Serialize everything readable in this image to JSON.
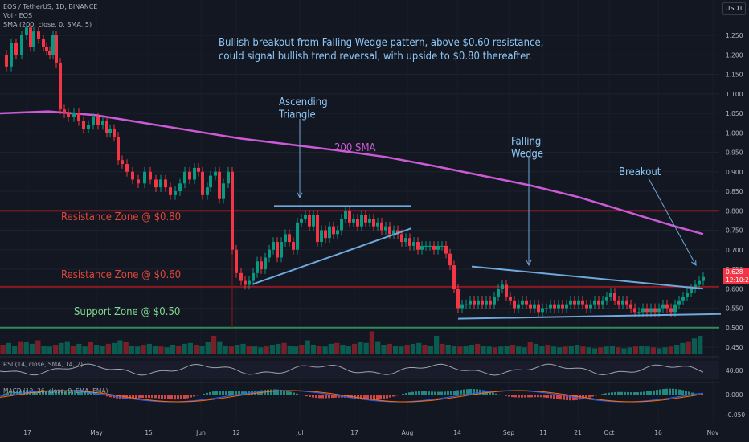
{
  "header": {
    "symbol_line": "EOS / TetherUS, 1D, BINANCE",
    "vol_line": "Vol · EOS",
    "sma_line": "SMA (200, close, 0, SMA, 5)",
    "currency": "USDT"
  },
  "current_price": {
    "price": "0.628",
    "countdown": "12:10:26"
  },
  "chart_data": {
    "type": "candlestick",
    "title": "Bullish breakout from Falling Wedge pattern, above $0.60 resistance, could signal bullish trend reversal, with upside to $0.80 thereafter.",
    "x_tick_labels": [
      "17",
      "May",
      "15",
      "Jun",
      "12",
      "Jul",
      "17",
      "Aug",
      "14",
      "Sep",
      "11",
      "21",
      "Oct",
      "16",
      "Nov"
    ],
    "y_ticks": [
      1.25,
      1.2,
      1.15,
      1.1,
      1.05,
      1.0,
      0.95,
      0.9,
      0.85,
      0.8,
      0.75,
      0.7,
      0.65,
      0.6,
      0.55,
      0.5,
      0.45
    ],
    "ylim": [
      0.43,
      1.27
    ],
    "price_path": [
      [
        0,
        1.2
      ],
      [
        8,
        1.17
      ],
      [
        14,
        1.23
      ],
      [
        20,
        1.2
      ],
      [
        27,
        1.25
      ],
      [
        33,
        1.27
      ],
      [
        38,
        1.22
      ],
      [
        42,
        1.26
      ],
      [
        48,
        1.24
      ],
      [
        54,
        1.22
      ],
      [
        58,
        1.21
      ],
      [
        62,
        1.2
      ],
      [
        66,
        1.25
      ],
      [
        70,
        1.18
      ],
      [
        75,
        1.06
      ],
      [
        80,
        1.05
      ],
      [
        85,
        1.04
      ],
      [
        92,
        1.05
      ],
      [
        98,
        1.03
      ],
      [
        104,
        1.01
      ],
      [
        110,
        1.02
      ],
      [
        116,
        1.04
      ],
      [
        122,
        1.02
      ],
      [
        128,
        1.03
      ],
      [
        133,
        1.0
      ],
      [
        137,
        1.01
      ],
      [
        142,
        0.99
      ],
      [
        147,
        0.93
      ],
      [
        152,
        0.92
      ],
      [
        158,
        0.9
      ],
      [
        165,
        0.88
      ],
      [
        172,
        0.87
      ],
      [
        180,
        0.9
      ],
      [
        187,
        0.88
      ],
      [
        194,
        0.86
      ],
      [
        200,
        0.88
      ],
      [
        206,
        0.86
      ],
      [
        212,
        0.84
      ],
      [
        218,
        0.85
      ],
      [
        224,
        0.87
      ],
      [
        230,
        0.9
      ],
      [
        236,
        0.88
      ],
      [
        242,
        0.91
      ],
      [
        247,
        0.9
      ],
      [
        252,
        0.84
      ],
      [
        258,
        0.86
      ],
      [
        262,
        0.89
      ],
      [
        268,
        0.9
      ],
      [
        273,
        0.83
      ],
      [
        278,
        0.87
      ],
      [
        284,
        0.9
      ],
      [
        289,
        0.7
      ],
      [
        294,
        0.64
      ],
      [
        300,
        0.62
      ],
      [
        305,
        0.61
      ],
      [
        310,
        0.62
      ],
      [
        315,
        0.64
      ],
      [
        320,
        0.67
      ],
      [
        325,
        0.65
      ],
      [
        330,
        0.68
      ],
      [
        335,
        0.7
      ],
      [
        340,
        0.72
      ],
      [
        345,
        0.68
      ],
      [
        350,
        0.72
      ],
      [
        355,
        0.74
      ],
      [
        360,
        0.72
      ],
      [
        365,
        0.7
      ],
      [
        370,
        0.77
      ],
      [
        375,
        0.78
      ],
      [
        380,
        0.79
      ],
      [
        385,
        0.76
      ],
      [
        390,
        0.79
      ],
      [
        395,
        0.72
      ],
      [
        400,
        0.75
      ],
      [
        405,
        0.73
      ],
      [
        410,
        0.76
      ],
      [
        415,
        0.74
      ],
      [
        420,
        0.75
      ],
      [
        425,
        0.78
      ],
      [
        430,
        0.8
      ],
      [
        435,
        0.77
      ],
      [
        440,
        0.78
      ],
      [
        445,
        0.76
      ],
      [
        450,
        0.79
      ],
      [
        455,
        0.77
      ],
      [
        460,
        0.78
      ],
      [
        465,
        0.76
      ],
      [
        470,
        0.77
      ],
      [
        475,
        0.75
      ],
      [
        480,
        0.76
      ],
      [
        485,
        0.74
      ],
      [
        490,
        0.75
      ],
      [
        495,
        0.74
      ],
      [
        500,
        0.72
      ],
      [
        505,
        0.73
      ],
      [
        510,
        0.71
      ],
      [
        515,
        0.72
      ],
      [
        520,
        0.7
      ],
      [
        525,
        0.71
      ],
      [
        530,
        0.71
      ],
      [
        535,
        0.71
      ],
      [
        540,
        0.7
      ],
      [
        545,
        0.71
      ],
      [
        550,
        0.71
      ],
      [
        555,
        0.69
      ],
      [
        560,
        0.66
      ],
      [
        565,
        0.6
      ],
      [
        570,
        0.55
      ],
      [
        575,
        0.56
      ],
      [
        580,
        0.56
      ],
      [
        585,
        0.57
      ],
      [
        590,
        0.56
      ],
      [
        595,
        0.57
      ],
      [
        600,
        0.56
      ],
      [
        605,
        0.57
      ],
      [
        610,
        0.56
      ],
      [
        615,
        0.58
      ],
      [
        620,
        0.6
      ],
      [
        625,
        0.61
      ],
      [
        630,
        0.58
      ],
      [
        635,
        0.57
      ],
      [
        640,
        0.55
      ],
      [
        645,
        0.56
      ],
      [
        650,
        0.57
      ],
      [
        655,
        0.56
      ],
      [
        660,
        0.55
      ],
      [
        665,
        0.56
      ],
      [
        670,
        0.54
      ],
      [
        675,
        0.55
      ],
      [
        680,
        0.55
      ],
      [
        685,
        0.56
      ],
      [
        690,
        0.55
      ],
      [
        695,
        0.56
      ],
      [
        700,
        0.55
      ],
      [
        705,
        0.56
      ],
      [
        710,
        0.57
      ],
      [
        715,
        0.56
      ],
      [
        720,
        0.57
      ],
      [
        725,
        0.56
      ],
      [
        730,
        0.55
      ],
      [
        735,
        0.56
      ],
      [
        740,
        0.57
      ],
      [
        745,
        0.56
      ],
      [
        750,
        0.57
      ],
      [
        755,
        0.58
      ],
      [
        760,
        0.59
      ],
      [
        765,
        0.57
      ],
      [
        770,
        0.56
      ],
      [
        775,
        0.57
      ],
      [
        780,
        0.56
      ],
      [
        785,
        0.55
      ],
      [
        790,
        0.54
      ],
      [
        795,
        0.54
      ],
      [
        800,
        0.55
      ],
      [
        805,
        0.54
      ],
      [
        810,
        0.55
      ],
      [
        815,
        0.54
      ],
      [
        820,
        0.55
      ],
      [
        825,
        0.56
      ],
      [
        830,
        0.55
      ],
      [
        835,
        0.54
      ],
      [
        840,
        0.56
      ],
      [
        845,
        0.57
      ],
      [
        850,
        0.58
      ],
      [
        855,
        0.59
      ],
      [
        860,
        0.6
      ],
      [
        865,
        0.61
      ],
      [
        870,
        0.62
      ],
      [
        875,
        0.63
      ]
    ],
    "sma200": [
      [
        0,
        1.05
      ],
      [
        60,
        1.055
      ],
      [
        120,
        1.045
      ],
      [
        180,
        1.025
      ],
      [
        240,
        1.005
      ],
      [
        300,
        0.985
      ],
      [
        360,
        0.97
      ],
      [
        420,
        0.955
      ],
      [
        480,
        0.938
      ],
      [
        540,
        0.915
      ],
      [
        600,
        0.89
      ],
      [
        660,
        0.865
      ],
      [
        720,
        0.835
      ],
      [
        760,
        0.81
      ],
      [
        800,
        0.785
      ],
      [
        840,
        0.76
      ],
      [
        875,
        0.74
      ]
    ],
    "volume": [
      20,
      24,
      18,
      28,
      26,
      22,
      30,
      18,
      16,
      20,
      24,
      28,
      18,
      22,
      16,
      26,
      20,
      18,
      22,
      24,
      30,
      26,
      18,
      16,
      20,
      22,
      18,
      16,
      14,
      20,
      18,
      22,
      24,
      20,
      18,
      26,
      40,
      28,
      18,
      16,
      20,
      22,
      18,
      16,
      14,
      18,
      20,
      22,
      24,
      18,
      16,
      20,
      30,
      20,
      18,
      16,
      22,
      24,
      20,
      18,
      22,
      26,
      24,
      50,
      28,
      20,
      22,
      18,
      16,
      20,
      22,
      24,
      20,
      18,
      40,
      22,
      20,
      18,
      16,
      18,
      20,
      22,
      18,
      16,
      14,
      16,
      18,
      20,
      16,
      14,
      26,
      22,
      18,
      20,
      16,
      14,
      16,
      18,
      20,
      16,
      14,
      12,
      14,
      16,
      18,
      14,
      12,
      14,
      16,
      18,
      16,
      14,
      12,
      14,
      16,
      20,
      24,
      28,
      34,
      40
    ],
    "panels": {
      "vol": "Vol · EOS",
      "rsi": "RSI (14, close, SMA, 14, 2)",
      "macd": "MACD (12, 26, close, 9, EMA, EMA)"
    },
    "rsi_ticks": [
      "40.00"
    ],
    "macd_ticks": [
      "0.000",
      "-0.050"
    ],
    "annotations": {
      "resistance_080": "Resistance Zone @ $0.80",
      "resistance_060": "Resistance Zone @ $0.60",
      "support_050": "Support Zone @ $0.50",
      "ascending_triangle": "Ascending\nTriangle",
      "sma_label": "200 SMA",
      "falling_wedge": "Falling\nWedge",
      "breakout": "Breakout"
    }
  },
  "colors": {
    "bg": "#131722",
    "up": "#089981",
    "down": "#f23645",
    "sma": "#cc5ad6",
    "trendline": "#6fa8dc",
    "resistance_line": "#8b1a20",
    "support_line": "#2e8b57",
    "annotation_text": "#8fc7f5",
    "resistance_text": "#e0463c",
    "support_text": "#7fd88f"
  }
}
